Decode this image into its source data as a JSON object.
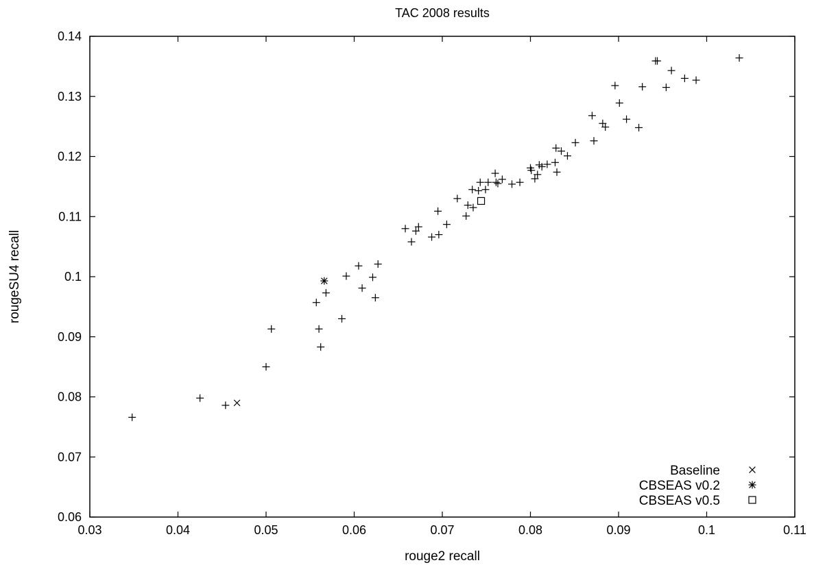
{
  "chart_data": {
    "type": "scatter",
    "title": "TAC 2008 results",
    "xlabel": "rouge2 recall",
    "ylabel": "rougeSU4 recall",
    "xlim": [
      0.03,
      0.11
    ],
    "ylim": [
      0.06,
      0.14
    ],
    "xticks": [
      0.03,
      0.04,
      0.05,
      0.06,
      0.07,
      0.08,
      0.09,
      0.1,
      0.11
    ],
    "xtick_labels": [
      "0.03",
      "0.04",
      "0.05",
      "0.06",
      "0.07",
      "0.08",
      "0.09",
      "0.1",
      "0.11"
    ],
    "yticks": [
      0.06,
      0.07,
      0.08,
      0.09,
      0.1,
      0.11,
      0.12,
      0.13,
      0.14
    ],
    "ytick_labels": [
      "0.06",
      "0.07",
      "0.08",
      "0.09",
      "0.1",
      "0.11",
      "0.12",
      "0.13",
      "0.14"
    ],
    "grid": false,
    "legend_position": "bottom-right",
    "colors": {
      "marks": "#000000",
      "axes": "#000000",
      "background": "#ffffff"
    },
    "series": [
      {
        "marker": "plus",
        "points": [
          [
            0.0348,
            0.0766
          ],
          [
            0.0425,
            0.0798
          ],
          [
            0.0454,
            0.0786
          ],
          [
            0.05,
            0.085
          ],
          [
            0.0506,
            0.0913
          ],
          [
            0.0557,
            0.0957
          ],
          [
            0.056,
            0.0913
          ],
          [
            0.0562,
            0.0883
          ],
          [
            0.0568,
            0.0973
          ],
          [
            0.0586,
            0.093
          ],
          [
            0.0591,
            0.1001
          ],
          [
            0.0605,
            0.1018
          ],
          [
            0.0609,
            0.0981
          ],
          [
            0.0621,
            0.0999
          ],
          [
            0.0624,
            0.0965
          ],
          [
            0.0627,
            0.1021
          ],
          [
            0.0658,
            0.108
          ],
          [
            0.0665,
            0.1058
          ],
          [
            0.067,
            0.1076
          ],
          [
            0.0673,
            0.1083
          ],
          [
            0.0688,
            0.1066
          ],
          [
            0.0695,
            0.1109
          ],
          [
            0.0696,
            0.107
          ],
          [
            0.0705,
            0.1087
          ],
          [
            0.0717,
            0.113
          ],
          [
            0.0727,
            0.1101
          ],
          [
            0.0729,
            0.1119
          ],
          [
            0.0734,
            0.1145
          ],
          [
            0.0735,
            0.1115
          ],
          [
            0.0741,
            0.1143
          ],
          [
            0.0743,
            0.1157
          ],
          [
            0.0749,
            0.1145
          ],
          [
            0.0752,
            0.1157
          ],
          [
            0.076,
            0.1172
          ],
          [
            0.0761,
            0.1157
          ],
          [
            0.0763,
            0.1155
          ],
          [
            0.0768,
            0.1162
          ],
          [
            0.0779,
            0.1154
          ],
          [
            0.0788,
            0.1157
          ],
          [
            0.08,
            0.1181
          ],
          [
            0.0801,
            0.1177
          ],
          [
            0.0805,
            0.1163
          ],
          [
            0.0808,
            0.117
          ],
          [
            0.081,
            0.1186
          ],
          [
            0.0813,
            0.1183
          ],
          [
            0.0819,
            0.1187
          ],
          [
            0.0828,
            0.119
          ],
          [
            0.0829,
            0.1214
          ],
          [
            0.083,
            0.1174
          ],
          [
            0.0835,
            0.1209
          ],
          [
            0.0842,
            0.1201
          ],
          [
            0.0851,
            0.1223
          ],
          [
            0.087,
            0.1268
          ],
          [
            0.0872,
            0.1226
          ],
          [
            0.0882,
            0.1255
          ],
          [
            0.0885,
            0.1249
          ],
          [
            0.0896,
            0.1318
          ],
          [
            0.0901,
            0.1289
          ],
          [
            0.0909,
            0.1262
          ],
          [
            0.0923,
            0.1248
          ],
          [
            0.0927,
            0.1316
          ],
          [
            0.0942,
            0.1359
          ],
          [
            0.0944,
            0.1359
          ],
          [
            0.0954,
            0.1315
          ],
          [
            0.096,
            0.1343
          ],
          [
            0.0975,
            0.133
          ],
          [
            0.0988,
            0.1327
          ],
          [
            0.1037,
            0.1364
          ]
        ]
      },
      {
        "name": "Baseline",
        "marker": "cross",
        "points": [
          [
            0.0467,
            0.079
          ]
        ]
      },
      {
        "name": "CBSEAS v0.2",
        "marker": "star",
        "points": [
          [
            0.0566,
            0.0993
          ]
        ]
      },
      {
        "name": "CBSEAS v0.5",
        "marker": "square",
        "points": [
          [
            0.0744,
            0.1126
          ]
        ]
      }
    ]
  }
}
